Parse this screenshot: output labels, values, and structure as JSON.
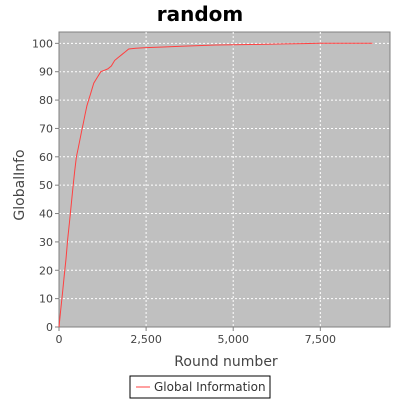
{
  "chart_data": {
    "type": "line",
    "title": "random",
    "xlabel": "Round number",
    "ylabel": "GlobalInfo",
    "xlim": [
      0,
      9500
    ],
    "ylim": [
      0,
      104
    ],
    "x_ticks": [
      0,
      2500,
      5000,
      7500
    ],
    "x_tick_labels": [
      "0",
      "2,500",
      "5,000",
      "7,500"
    ],
    "y_ticks": [
      0,
      10,
      20,
      30,
      40,
      50,
      60,
      70,
      80,
      90,
      100
    ],
    "y_tick_labels": [
      "0",
      "10",
      "20",
      "30",
      "40",
      "50",
      "60",
      "70",
      "80",
      "90",
      "100"
    ],
    "grid": true,
    "plot_background": "#c0c0c0",
    "legend_position": "bottom-center",
    "series": [
      {
        "name": "Global Information",
        "color": "#ff4040",
        "x": [
          0,
          50,
          100,
          150,
          200,
          250,
          300,
          350,
          400,
          450,
          500,
          550,
          600,
          650,
          700,
          750,
          800,
          850,
          900,
          950,
          1000,
          1100,
          1200,
          1300,
          1400,
          1500,
          1600,
          1700,
          1800,
          1900,
          2000,
          2200,
          2500,
          3000,
          3500,
          4000,
          4500,
          5000,
          5500,
          6000,
          6500,
          7000,
          7500,
          8000,
          8500,
          9000
        ],
        "y": [
          0,
          6,
          12,
          18,
          24,
          31,
          37,
          43,
          49,
          55,
          60,
          63,
          66,
          69,
          72,
          75,
          78,
          80,
          82,
          84,
          86,
          88,
          90,
          90.5,
          91,
          92,
          94,
          95,
          96,
          97,
          98,
          98.3,
          98.5,
          98.7,
          99,
          99.2,
          99.4,
          99.5,
          99.6,
          99.7,
          99.8,
          99.9,
          100,
          100,
          100,
          100
        ]
      }
    ]
  }
}
